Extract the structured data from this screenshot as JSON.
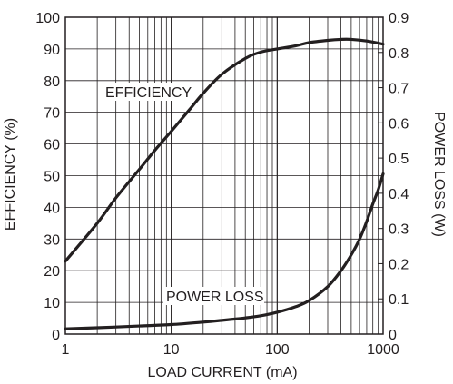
{
  "chart_data": {
    "type": "line",
    "xlabel": "LOAD CURRENT (mA)",
    "ylabel": "EFFICIENCY (%)",
    "y2label": "POWER LOSS (W)",
    "x_scale": "log",
    "xlim": [
      1,
      1000
    ],
    "ylim": [
      0,
      100
    ],
    "y2lim": [
      0,
      0.9
    ],
    "grid": true,
    "x_ticks": [
      "1",
      "10",
      "100",
      "1000"
    ],
    "y_ticks": [
      "0",
      "10",
      "20",
      "30",
      "40",
      "50",
      "60",
      "70",
      "80",
      "90",
      "100"
    ],
    "y2_ticks": [
      "0",
      "0.1",
      "0.2",
      "0.3",
      "0.4",
      "0.5",
      "0.6",
      "0.7",
      "0.8",
      "0.9"
    ],
    "colors": {
      "line": "#231f20",
      "grid": "#231f20",
      "background": "#ffffff"
    },
    "series": [
      {
        "name": "EFFICIENCY",
        "axis": "left",
        "x": [
          1,
          2,
          3,
          5,
          7,
          10,
          15,
          20,
          30,
          50,
          70,
          100,
          150,
          200,
          300,
          400,
          500,
          700,
          1000
        ],
        "y": [
          23,
          35,
          43,
          52,
          58,
          64,
          71,
          76,
          82,
          87,
          89,
          90,
          91,
          92,
          92.7,
          93,
          93,
          92.5,
          91.5
        ]
      },
      {
        "name": "POWER LOSS",
        "axis": "right",
        "x": [
          1,
          2,
          5,
          10,
          20,
          30,
          50,
          70,
          100,
          150,
          200,
          300,
          400,
          500,
          600,
          700,
          800,
          900,
          1000
        ],
        "y": [
          0.015,
          0.018,
          0.023,
          0.027,
          0.034,
          0.039,
          0.046,
          0.052,
          0.062,
          0.078,
          0.095,
          0.135,
          0.18,
          0.225,
          0.27,
          0.32,
          0.37,
          0.41,
          0.455
        ]
      }
    ]
  }
}
